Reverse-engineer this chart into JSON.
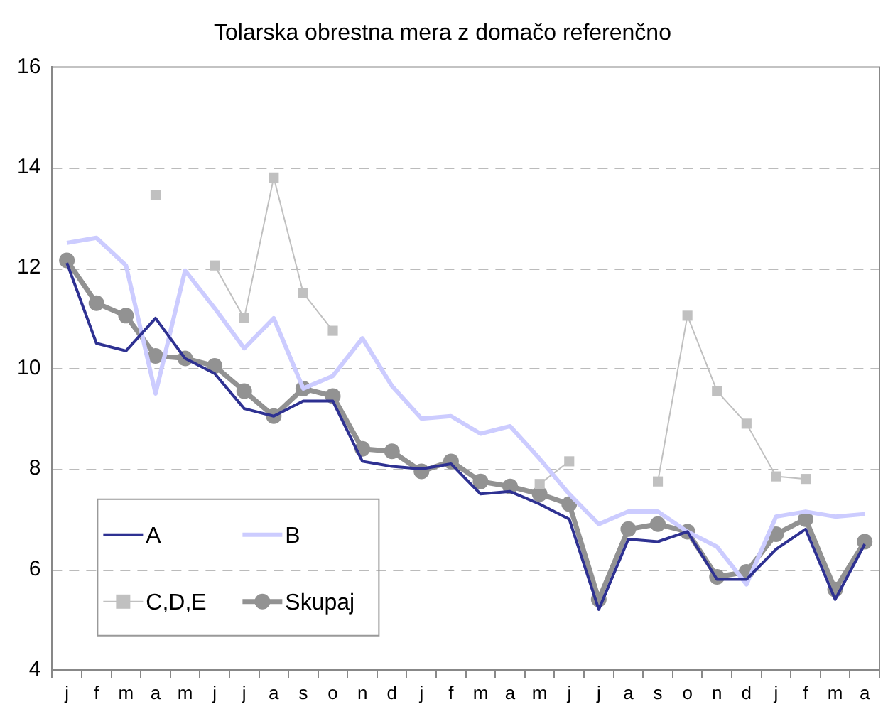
{
  "chart_data": {
    "type": "line",
    "title": "Tolarska obrestna mera z domačo referenčno",
    "categories": [
      "j",
      "f",
      "m",
      "a",
      "m",
      "j",
      "j",
      "a",
      "s",
      "o",
      "n",
      "d",
      "j",
      "f",
      "m",
      "a",
      "m",
      "j",
      "j",
      "a",
      "s",
      "o",
      "n",
      "d",
      "j",
      "f",
      "m",
      "a"
    ],
    "ylim": [
      4,
      16
    ],
    "yticks": [
      4,
      6,
      8,
      10,
      12,
      14,
      16
    ],
    "grid": "y",
    "legend": "bottom left",
    "series": [
      {
        "name": "A",
        "color": "#2e3192",
        "marker": "none",
        "values": [
          12.1,
          10.5,
          10.35,
          11.0,
          10.2,
          9.9,
          9.2,
          9.05,
          9.35,
          9.35,
          8.15,
          8.05,
          8.0,
          8.1,
          7.5,
          7.55,
          7.3,
          7.0,
          5.2,
          6.6,
          6.55,
          6.75,
          5.8,
          5.8,
          6.4,
          6.8,
          5.4,
          6.5
        ]
      },
      {
        "name": "B",
        "color": "#ccccff",
        "marker": "none",
        "values": [
          12.5,
          12.6,
          12.05,
          9.5,
          11.95,
          11.2,
          10.4,
          11.0,
          9.6,
          9.85,
          10.6,
          9.65,
          9.0,
          9.05,
          8.7,
          8.85,
          8.2,
          7.5,
          6.9,
          7.15,
          7.15,
          6.75,
          6.45,
          5.7,
          7.05,
          7.15,
          7.05,
          7.1
        ]
      },
      {
        "name": "C,D,E",
        "color": "#c0c0c0",
        "marker": "square",
        "values": [
          null,
          null,
          null,
          13.45,
          null,
          12.05,
          11.0,
          13.8,
          11.5,
          10.75,
          null,
          null,
          null,
          null,
          null,
          null,
          7.7,
          8.15,
          null,
          null,
          7.75,
          11.05,
          9.55,
          8.9,
          7.85,
          7.8,
          null,
          null
        ]
      },
      {
        "name": "Skupaj",
        "color": "#929292",
        "marker": "circle",
        "values": [
          12.15,
          11.3,
          11.05,
          10.25,
          10.2,
          10.05,
          9.55,
          9.05,
          9.6,
          9.45,
          8.4,
          8.35,
          7.95,
          8.15,
          7.75,
          7.65,
          7.5,
          7.3,
          5.4,
          6.8,
          6.9,
          6.75,
          5.85,
          5.95,
          6.7,
          7.0,
          5.6,
          6.55
        ]
      }
    ]
  }
}
